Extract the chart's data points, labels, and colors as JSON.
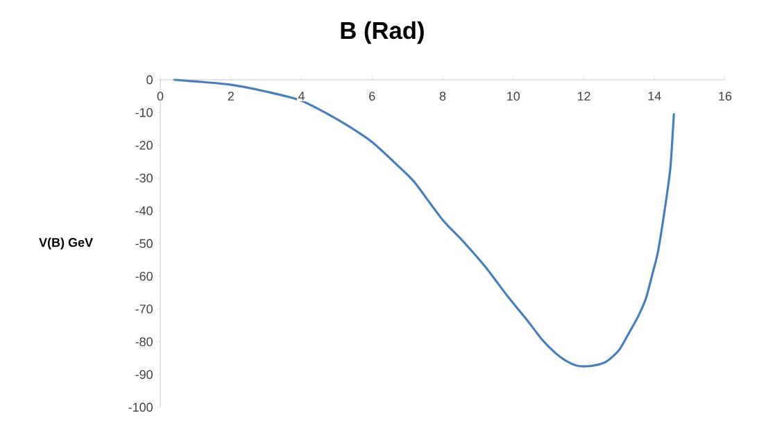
{
  "chart_data": {
    "type": "line",
    "title": "B (Rad)",
    "ylabel": "V(B) GeV",
    "x": [
      0.4,
      1,
      2,
      3,
      4,
      5,
      6,
      7,
      7.24,
      8,
      8.55,
      9.2,
      9.84,
      10.4,
      10.82,
      11.2,
      11.49,
      11.8,
      12.08,
      12.4,
      12.67,
      13.0,
      13.31,
      13.55,
      13.76,
      13.95,
      14.1,
      14.3,
      14.45,
      14.55
    ],
    "series": [
      {
        "color": "#4a7ebb",
        "values": [
          0,
          -0.5,
          -1.5,
          -3.6,
          -6.4,
          -12,
          -19,
          -29,
          -31.8,
          -42.8,
          -49,
          -57,
          -66.1,
          -73.5,
          -79.4,
          -83.5,
          -85.8,
          -87.3,
          -87.5,
          -87,
          -85.8,
          -82.5,
          -76.7,
          -72,
          -66.7,
          -59,
          -52.5,
          -39,
          -27,
          -10.5
        ]
      }
    ],
    "xlim": [
      0,
      16
    ],
    "xticks": [
      0,
      2,
      4,
      6,
      8,
      10,
      12,
      14,
      16
    ],
    "ylim": [
      -100,
      0
    ],
    "yticks": [
      -100,
      -90,
      -80,
      -70,
      -60,
      -50,
      -40,
      -30,
      -20,
      -10,
      0
    ],
    "grid": false,
    "marker": "none",
    "line_style": "solid"
  }
}
